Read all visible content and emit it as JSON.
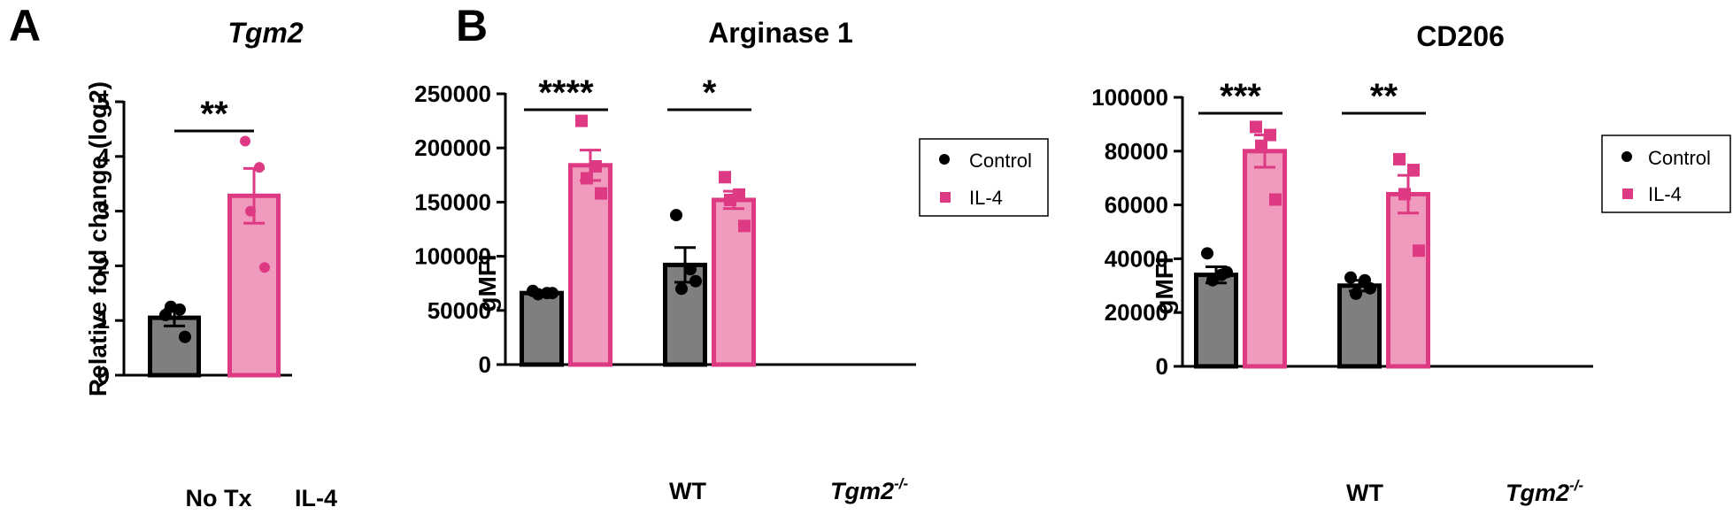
{
  "panels": [
    {
      "letter": "A",
      "title": "Tgm2",
      "title_italic": true,
      "ylabel": "Relative fold change (log2)",
      "categories": [
        "No Tx",
        "IL-4"
      ]
    },
    {
      "letter": "B",
      "title": "Arginase 1",
      "ylabel": "gMFI",
      "categories": [
        "WT",
        "Tgm2"
      ],
      "category_superscript": [
        "",
        "-/-"
      ]
    },
    {
      "letter": "",
      "title": "CD206",
      "ylabel": "gMFI",
      "categories": [
        "WT",
        "Tgm2"
      ],
      "category_superscript": [
        "",
        "-/-"
      ]
    }
  ],
  "legend": {
    "items": [
      "Control",
      "IL-4"
    ]
  },
  "colors": {
    "control_fill": "#7f7f7f",
    "control_stroke": "#000000",
    "il4_fill": "#f09bbd",
    "il4_stroke": "#de3a83"
  },
  "chart_data": [
    {
      "type": "bar",
      "title": "Tgm2",
      "xlabel": "",
      "ylabel": "Relative fold change (log2)",
      "ylim": [
        0,
        5
      ],
      "yticks": [
        0,
        1,
        2,
        3,
        4,
        5
      ],
      "categories": [
        "No Tx",
        "IL-4"
      ],
      "bars": [
        {
          "category": "No Tx",
          "value": 1.05,
          "sem": 0.15,
          "points": [
            1.1,
            1.2,
            1.25,
            0.7
          ],
          "color": "control"
        },
        {
          "category": "IL-4",
          "value": 3.28,
          "sem": 0.5,
          "points": [
            4.28,
            3.8,
            3.0,
            1.97
          ],
          "color": "il4"
        }
      ],
      "significance": [
        {
          "label": "**",
          "between": [
            "No Tx",
            "IL-4"
          ]
        }
      ]
    },
    {
      "type": "bar",
      "title": "Arginase 1",
      "xlabel": "",
      "ylabel": "gMFI",
      "ylim": [
        0,
        250000
      ],
      "yticks": [
        0,
        50000,
        100000,
        150000,
        200000,
        250000
      ],
      "categories": [
        "WT",
        "Tgm2-/-"
      ],
      "series": [
        {
          "name": "Control",
          "values": [
            66000,
            92000
          ],
          "sem": [
            2000,
            16000
          ],
          "points": [
            [
              68000,
              66000,
              65000,
              66000
            ],
            [
              138000,
              88000,
              70000,
              77000
            ]
          ]
        },
        {
          "name": "IL-4",
          "values": [
            184000,
            152000
          ],
          "sem": [
            14000,
            8000
          ],
          "points": [
            [
              225000,
              183000,
              172000,
              158000
            ],
            [
              173000,
              157000,
              152000,
              128000
            ]
          ]
        }
      ],
      "significance": [
        {
          "label": "****",
          "category": "WT"
        },
        {
          "label": "*",
          "category": "Tgm2-/-"
        }
      ],
      "legend_position": "top-right"
    },
    {
      "type": "bar",
      "title": "CD206",
      "xlabel": "",
      "ylabel": "gMFI",
      "ylim": [
        0,
        100000
      ],
      "yticks": [
        0,
        20000,
        40000,
        60000,
        80000,
        100000
      ],
      "categories": [
        "WT",
        "Tgm2-/-"
      ],
      "series": [
        {
          "name": "Control",
          "values": [
            34000,
            30000
          ],
          "sem": [
            3000,
            2000
          ],
          "points": [
            [
              42000,
              34000,
              32000,
              35000
            ],
            [
              33000,
              32000,
              27000,
              29000
            ]
          ]
        },
        {
          "name": "IL-4",
          "values": [
            80000,
            64000
          ],
          "sem": [
            6000,
            7000
          ],
          "points": [
            [
              89000,
              86000,
              82000,
              62000
            ],
            [
              77000,
              73000,
              64000,
              43000
            ]
          ]
        }
      ],
      "significance": [
        {
          "label": "***",
          "category": "WT"
        },
        {
          "label": "**",
          "category": "Tgm2-/-"
        }
      ],
      "legend_position": "top-right"
    }
  ]
}
